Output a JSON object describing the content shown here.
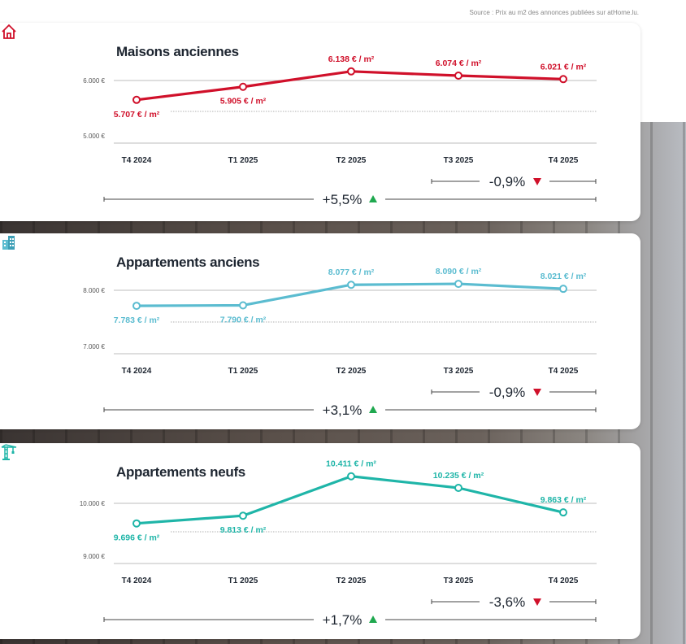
{
  "source": "Source : Prix au m2 des annonces publiées sur atHome.lu.",
  "chart_data": [
    {
      "type": "line",
      "title": "Maisons anciennes",
      "icon": "house-icon",
      "color": "#d0102a",
      "categories": [
        "T4 2024",
        "T1 2025",
        "T2 2025",
        "T3 2025",
        "T4 2025"
      ],
      "values": [
        5707,
        5905,
        6138,
        6074,
        6021
      ],
      "data_labels": [
        "5.707 € / m²",
        "5.905 € / m²",
        "6.138 € / m²",
        "6.074 € / m²",
        "6.021 € / m²"
      ],
      "yticks": [
        6000,
        5000
      ],
      "ytick_labels": [
        "6.000 €",
        "5.000 €"
      ],
      "ylim": [
        4904,
        6382
      ],
      "change_quarter": "-0,9%",
      "change_quarter_dir": "down",
      "change_year": "+5,5%",
      "change_year_dir": "up"
    },
    {
      "type": "line",
      "title": "Appartements anciens",
      "icon": "apartment-building-icon",
      "color": "#5bbcd0",
      "categories": [
        "T4 2024",
        "T1 2025",
        "T2 2025",
        "T3 2025",
        "T4 2025"
      ],
      "values": [
        7783,
        7790,
        8077,
        8090,
        8021
      ],
      "data_labels": [
        "7.783 € / m²",
        "7.790 € / m²",
        "8.077 € / m²",
        "8.090 € / m²",
        "8.021 € / m²"
      ],
      "yticks": [
        8000,
        7000
      ],
      "ytick_labels": [
        "8.000 €",
        "7.000 €"
      ],
      "ylim": [
        6977,
        8341
      ],
      "change_quarter": "-0,9%",
      "change_quarter_dir": "down",
      "change_year": "+3,1%",
      "change_year_dir": "up"
    },
    {
      "type": "line",
      "title": "Appartements neufs",
      "icon": "crane-icon",
      "color": "#1fb5a8",
      "categories": [
        "T4 2024",
        "T1 2025",
        "T2 2025",
        "T3 2025",
        "T4 2025"
      ],
      "values": [
        9696,
        9813,
        10411,
        10235,
        9863
      ],
      "data_labels": [
        "9.696 € / m²",
        "9.813 € / m²",
        "10.411 € / m²",
        "10.235 € / m²",
        "9.863 € / m²"
      ],
      "yticks": [
        10000,
        9000
      ],
      "ytick_labels": [
        "10.000 €",
        "9.000 €"
      ],
      "ylim": [
        8940,
        10420
      ],
      "change_quarter": "-3,6%",
      "change_quarter_dir": "down",
      "change_year": "+1,7%",
      "change_year_dir": "up"
    }
  ],
  "colors": {
    "up": "#1fa84f",
    "down": "#d0102a",
    "text": "#1d2530",
    "grid": "#bdbdbd"
  }
}
